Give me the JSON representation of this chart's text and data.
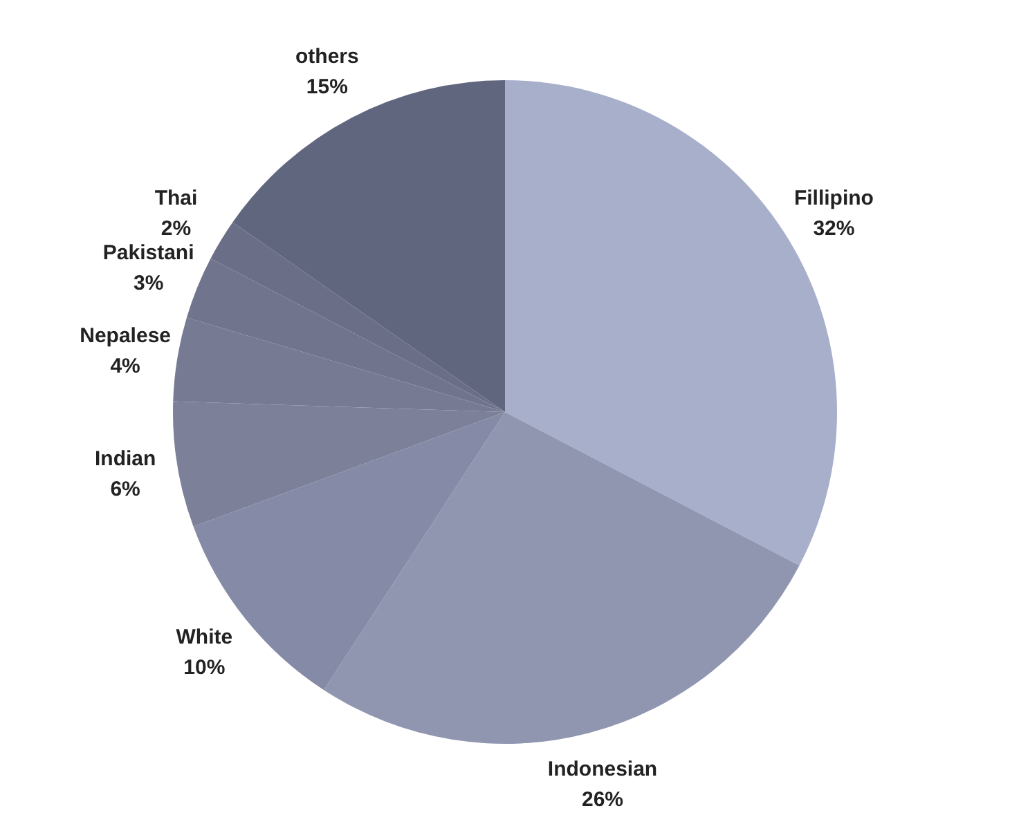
{
  "chart_data": {
    "type": "pie",
    "categories": [
      "Fillipino",
      "Indonesian",
      "White",
      "Indian",
      "Nepalese",
      "Pakistani",
      "Thai",
      "others"
    ],
    "values": [
      32,
      26,
      10,
      6,
      4,
      3,
      2,
      15
    ],
    "value_labels": [
      "32%",
      "26%",
      "10%",
      "6%",
      "4%",
      "3%",
      "2%",
      "15%"
    ],
    "colors": [
      "#a7afcb",
      "#9096b0",
      "#858ba6",
      "#7c8199",
      "#767b93",
      "#70758d",
      "#6a6f87",
      "#61667f"
    ],
    "legend": false
  }
}
